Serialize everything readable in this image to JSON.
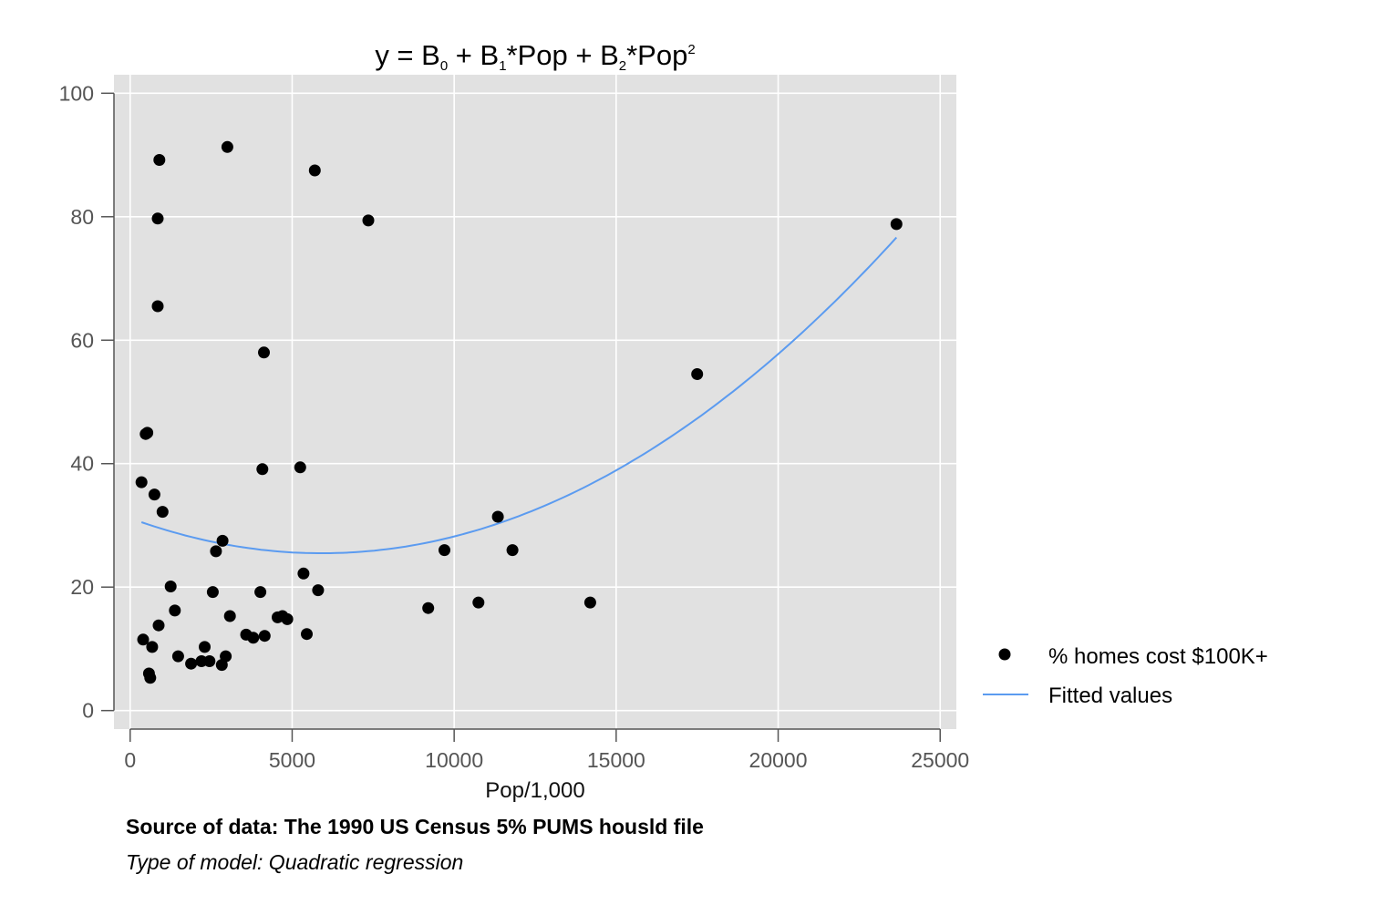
{
  "chart_data": {
    "type": "scatter",
    "title_parts": {
      "a": "y = B",
      "s0": "0",
      "b": " + B",
      "s1": "1",
      "c": "*Pop + B",
      "s2": "2",
      "d": "*Pop",
      "sup": "2"
    },
    "xlabel": "Pop/1,000",
    "ylabel": "",
    "xlim": [
      -500,
      25500
    ],
    "ylim": [
      -3,
      103
    ],
    "xticks": [
      0,
      5000,
      10000,
      15000,
      20000,
      25000
    ],
    "yticks": [
      0,
      20,
      40,
      60,
      80,
      100
    ],
    "grid": true,
    "background": "#e1e1e1",
    "legend_position": "right",
    "series": [
      {
        "name": "% homes cost $100K+",
        "kind": "scatter",
        "color": "#000000",
        "points": [
          [
            350,
            37.0
          ],
          [
            400,
            11.5
          ],
          [
            480,
            44.8
          ],
          [
            530,
            45.0
          ],
          [
            580,
            6.0
          ],
          [
            620,
            5.3
          ],
          [
            680,
            10.3
          ],
          [
            750,
            35.0
          ],
          [
            850,
            65.5
          ],
          [
            850,
            79.7
          ],
          [
            880,
            13.8
          ],
          [
            900,
            89.2
          ],
          [
            1000,
            32.2
          ],
          [
            1250,
            20.1
          ],
          [
            1380,
            16.2
          ],
          [
            1480,
            8.8
          ],
          [
            1880,
            7.6
          ],
          [
            2200,
            8.0
          ],
          [
            2300,
            10.3
          ],
          [
            2450,
            8.0
          ],
          [
            2550,
            19.2
          ],
          [
            2650,
            25.8
          ],
          [
            2830,
            7.4
          ],
          [
            2850,
            27.5
          ],
          [
            2950,
            8.8
          ],
          [
            3000,
            91.3
          ],
          [
            3080,
            15.3
          ],
          [
            3580,
            12.3
          ],
          [
            3800,
            11.8
          ],
          [
            4020,
            19.2
          ],
          [
            4080,
            39.1
          ],
          [
            4130,
            58.0
          ],
          [
            4150,
            12.1
          ],
          [
            4550,
            15.1
          ],
          [
            4700,
            15.3
          ],
          [
            4850,
            14.8
          ],
          [
            5250,
            39.4
          ],
          [
            5350,
            22.2
          ],
          [
            5450,
            12.4
          ],
          [
            5700,
            87.5
          ],
          [
            5800,
            19.5
          ],
          [
            7350,
            79.4
          ],
          [
            9200,
            16.6
          ],
          [
            9700,
            26.0
          ],
          [
            10750,
            17.5
          ],
          [
            11350,
            31.4
          ],
          [
            11800,
            26.0
          ],
          [
            14200,
            17.5
          ],
          [
            17500,
            54.5
          ],
          [
            23650,
            78.8
          ]
        ]
      },
      {
        "name": "Fitted values",
        "kind": "line",
        "color": "#5b9bf0",
        "x_range": [
          350,
          23650
        ],
        "coefficients": {
          "b0": 31.17,
          "b1": -0.0019226,
          "b2": 1.6257e-07
        }
      }
    ]
  },
  "notes": {
    "source": "Source of data: The 1990 US Census 5% PUMS housld file",
    "model": "Type of model: Quadratic regression"
  }
}
